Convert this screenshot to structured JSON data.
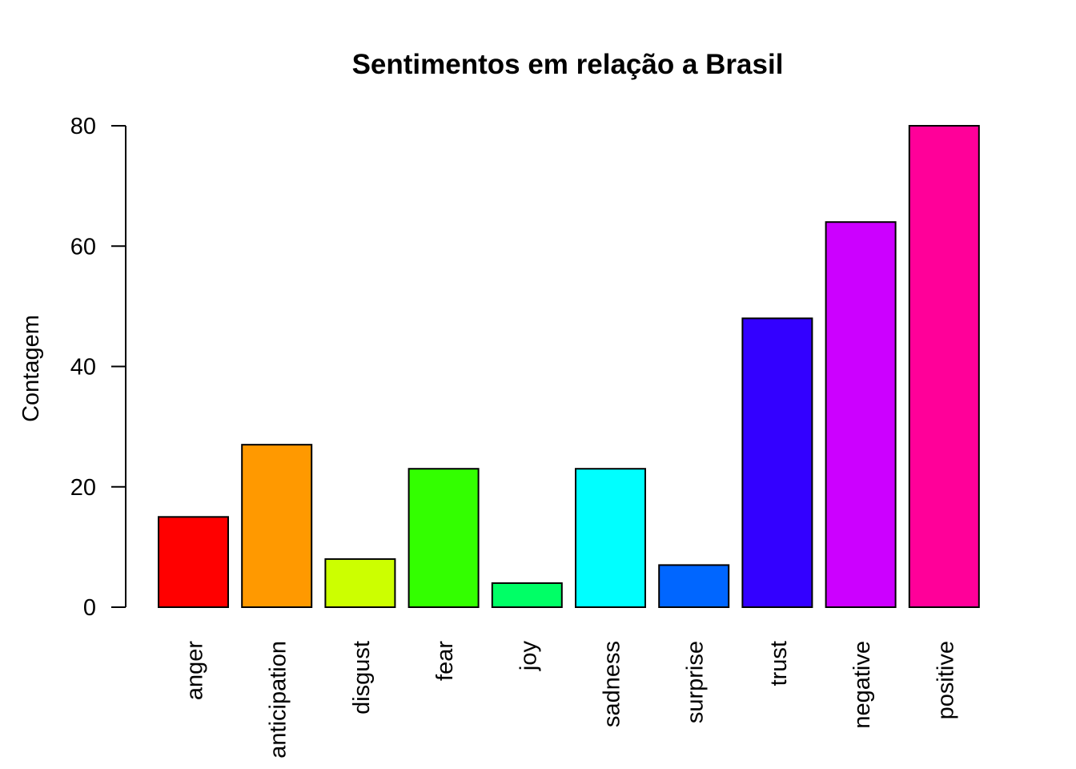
{
  "chart_data": {
    "type": "bar",
    "title": "Sentimentos em relação a Brasil",
    "xlabel": "",
    "ylabel": "Contagem",
    "categories": [
      "anger",
      "anticipation",
      "disgust",
      "fear",
      "joy",
      "sadness",
      "surprise",
      "trust",
      "negative",
      "positive"
    ],
    "values": [
      15,
      27,
      8,
      23,
      4,
      23,
      7,
      48,
      64,
      80
    ],
    "colors": [
      "#FF0000",
      "#FF9900",
      "#CCFF00",
      "#33FF00",
      "#00FF66",
      "#00FFFF",
      "#0066FF",
      "#3300FF",
      "#CC00FF",
      "#FF0099"
    ],
    "ylim": [
      0,
      80
    ],
    "yticks": [
      0,
      20,
      40,
      60,
      80
    ],
    "grid": false,
    "legend": "none"
  }
}
